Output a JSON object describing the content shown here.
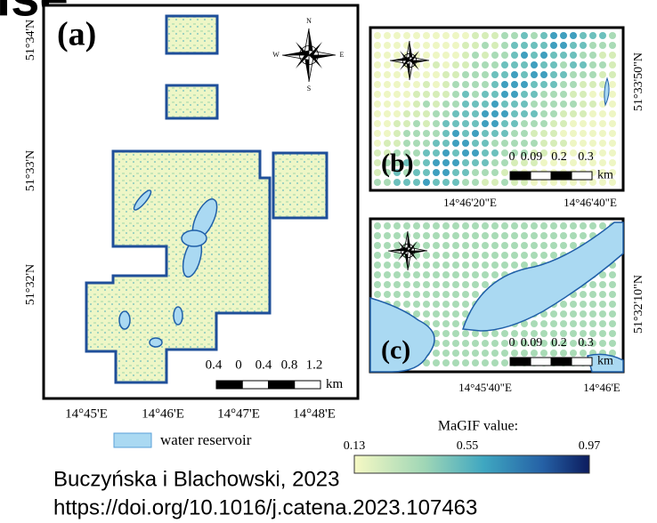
{
  "header": {
    "fragment": "ise"
  },
  "panel_a": {
    "label": "(a)",
    "lat_labels": [
      "51°34'N",
      "51°33'N",
      "51°32'N"
    ],
    "lon_labels": [
      "14°45'E",
      "14°46'E",
      "14°47'E",
      "14°48'E"
    ],
    "scale_labels": [
      "0.4",
      "0",
      "0.4",
      "0.8",
      "1.2"
    ],
    "scale_unit": "km",
    "compass": {
      "n": "N",
      "s": "S",
      "e": "E",
      "w": "W"
    }
  },
  "panel_b": {
    "label": "(b)",
    "lat_labels": [
      "51°33'50\"N"
    ],
    "lon_labels": [
      "14°46'20\"E",
      "14°46'40\"E"
    ],
    "scale_labels": [
      "0",
      "0.09",
      "0.2",
      "0.3"
    ],
    "scale_unit": "km"
  },
  "panel_c": {
    "label": "(c)",
    "lat_labels": [
      "51°32'10\"N"
    ],
    "lon_labels": [
      "14°45'40\"E",
      "14°46'E"
    ],
    "scale_labels": [
      "0",
      "0.09",
      "0.2",
      "0.3"
    ],
    "scale_unit": "km"
  },
  "legend": {
    "water": "water reservoir",
    "colorbar_title": "MaGIF value:",
    "colorbar_labels": [
      "0.13",
      "0.55",
      "0.97"
    ]
  },
  "citation": {
    "authors": "Buczyńska i Blachowski, 2023",
    "doi": "https://doi.org/10.1016/j.catena.2023.107463"
  }
}
